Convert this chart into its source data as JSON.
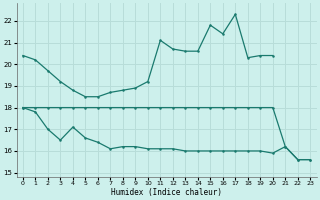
{
  "xlabel": "Humidex (Indice chaleur)",
  "xlim": [
    -0.5,
    23.5
  ],
  "ylim": [
    14.8,
    22.8
  ],
  "yticks": [
    15,
    16,
    17,
    18,
    19,
    20,
    21,
    22
  ],
  "xticks": [
    0,
    1,
    2,
    3,
    4,
    5,
    6,
    7,
    8,
    9,
    10,
    11,
    12,
    13,
    14,
    15,
    16,
    17,
    18,
    19,
    20,
    21,
    22,
    23
  ],
  "bg_color": "#cdf0ec",
  "line_color": "#1a7a6e",
  "grid_color": "#b8ddd9",
  "line_upper": {
    "x": [
      0,
      1,
      2,
      3,
      4,
      5,
      6,
      7,
      8,
      9,
      10,
      11,
      12,
      13,
      14,
      15,
      16,
      17,
      18,
      19,
      20
    ],
    "y": [
      20.4,
      20.2,
      19.7,
      19.2,
      18.8,
      18.5,
      18.5,
      18.7,
      18.8,
      18.9,
      19.2,
      21.1,
      20.7,
      20.6,
      20.6,
      21.8,
      21.4,
      22.3,
      20.3,
      20.4,
      20.4
    ]
  },
  "line_flat": {
    "x": [
      0,
      1,
      2,
      3,
      4,
      5,
      6,
      7,
      8,
      9,
      10,
      11,
      12,
      13,
      14,
      15,
      16,
      17,
      18,
      19,
      20,
      21,
      22,
      23
    ],
    "y": [
      18.0,
      18.0,
      18.0,
      18.0,
      18.0,
      18.0,
      18.0,
      18.0,
      18.0,
      18.0,
      18.0,
      18.0,
      18.0,
      18.0,
      18.0,
      18.0,
      18.0,
      18.0,
      18.0,
      18.0,
      18.0,
      16.2,
      15.6,
      15.6
    ]
  },
  "line_lower": {
    "x": [
      0,
      1,
      2,
      3,
      4,
      5,
      6,
      7,
      8,
      9,
      10,
      11,
      12,
      13,
      14,
      15,
      16,
      17,
      18,
      19,
      20,
      21,
      22,
      23
    ],
    "y": [
      18.0,
      17.8,
      17.0,
      16.5,
      17.1,
      16.6,
      16.4,
      16.1,
      16.2,
      16.2,
      16.1,
      16.1,
      16.1,
      16.0,
      16.0,
      16.0,
      16.0,
      16.0,
      16.0,
      16.0,
      15.9,
      16.2,
      15.6,
      15.6
    ]
  }
}
